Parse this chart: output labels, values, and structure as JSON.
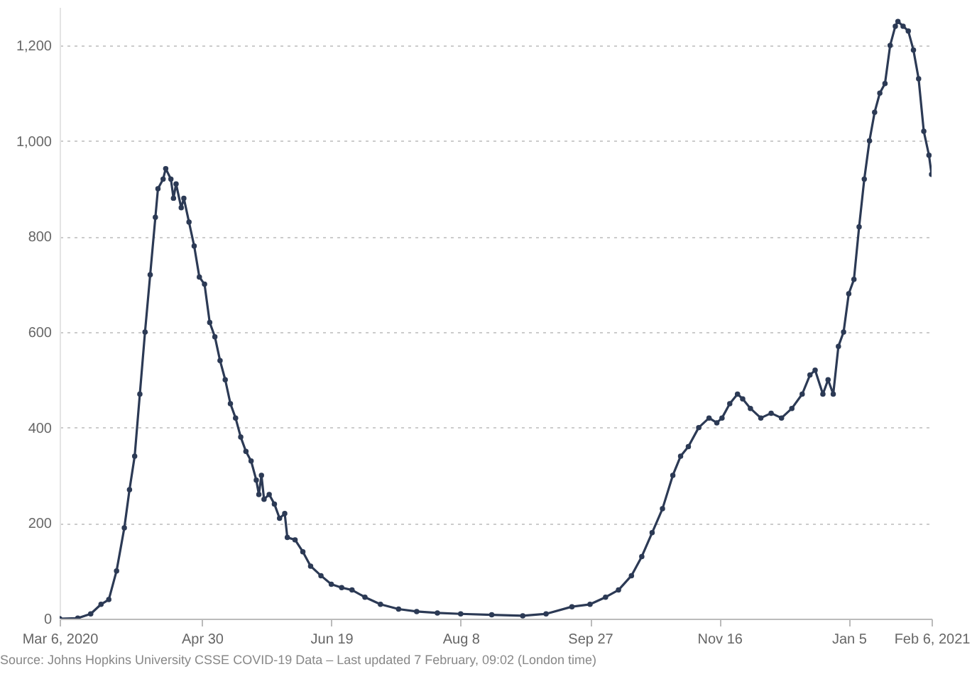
{
  "chart_data": {
    "type": "line",
    "x": [
      "2020-03-06",
      "2020-03-13",
      "2020-03-18",
      "2020-03-22",
      "2020-03-25",
      "2020-03-28",
      "2020-03-31",
      "2020-04-02",
      "2020-04-04",
      "2020-04-06",
      "2020-04-08",
      "2020-04-10",
      "2020-04-12",
      "2020-04-13",
      "2020-04-15",
      "2020-04-16",
      "2020-04-18",
      "2020-04-19",
      "2020-04-20",
      "2020-04-22",
      "2020-04-23",
      "2020-04-25",
      "2020-04-27",
      "2020-04-29",
      "2020-05-01",
      "2020-05-03",
      "2020-05-05",
      "2020-05-07",
      "2020-05-09",
      "2020-05-11",
      "2020-05-13",
      "2020-05-15",
      "2020-05-17",
      "2020-05-19",
      "2020-05-21",
      "2020-05-22",
      "2020-05-23",
      "2020-05-24",
      "2020-05-26",
      "2020-05-28",
      "2020-05-30",
      "2020-06-01",
      "2020-06-02",
      "2020-06-05",
      "2020-06-08",
      "2020-06-11",
      "2020-06-15",
      "2020-06-19",
      "2020-06-23",
      "2020-06-27",
      "2020-07-02",
      "2020-07-08",
      "2020-07-15",
      "2020-07-22",
      "2020-07-30",
      "2020-08-08",
      "2020-08-20",
      "2020-09-01",
      "2020-09-10",
      "2020-09-20",
      "2020-09-27",
      "2020-10-03",
      "2020-10-08",
      "2020-10-13",
      "2020-10-17",
      "2020-10-21",
      "2020-10-25",
      "2020-10-29",
      "2020-11-01",
      "2020-11-04",
      "2020-11-08",
      "2020-11-12",
      "2020-11-15",
      "2020-11-17",
      "2020-11-20",
      "2020-11-23",
      "2020-11-25",
      "2020-11-28",
      "2020-12-02",
      "2020-12-06",
      "2020-12-10",
      "2020-12-14",
      "2020-12-18",
      "2020-12-21",
      "2020-12-23",
      "2020-12-26",
      "2020-12-28",
      "2020-12-30",
      "2021-01-01",
      "2021-01-03",
      "2021-01-05",
      "2021-01-07",
      "2021-01-09",
      "2021-01-11",
      "2021-01-13",
      "2021-01-15",
      "2021-01-17",
      "2021-01-19",
      "2021-01-21",
      "2021-01-23",
      "2021-01-24",
      "2021-01-26",
      "2021-01-28",
      "2021-01-30",
      "2021-02-01",
      "2021-02-03",
      "2021-02-05",
      "2021-02-06"
    ],
    "series": [
      {
        "color": "#2c3a55",
        "values": [
          0,
          1,
          10,
          30,
          40,
          100,
          190,
          270,
          340,
          470,
          600,
          720,
          840,
          900,
          920,
          942,
          920,
          880,
          910,
          860,
          880,
          830,
          780,
          715,
          700,
          620,
          590,
          540,
          500,
          450,
          420,
          380,
          350,
          330,
          290,
          260,
          300,
          250,
          260,
          240,
          210,
          220,
          170,
          165,
          140,
          110,
          90,
          72,
          65,
          60,
          45,
          30,
          20,
          15,
          12,
          10,
          8,
          6,
          10,
          25,
          30,
          45,
          60,
          90,
          130,
          180,
          230,
          300,
          340,
          360,
          400,
          420,
          410,
          420,
          450,
          470,
          460,
          440,
          420,
          430,
          420,
          440,
          470,
          510,
          520,
          470,
          500,
          470,
          570,
          600,
          680,
          710,
          820,
          920,
          1000,
          1060,
          1100,
          1120,
          1200,
          1240,
          1250,
          1240,
          1230,
          1190,
          1130,
          1020,
          970,
          930
        ]
      }
    ],
    "xlim": [
      "2020-03-06",
      "2021-02-06"
    ],
    "xticks": [
      {
        "value": "2020-03-06",
        "label": "Mar 6, 2020"
      },
      {
        "value": "2020-04-30",
        "label": "Apr 30"
      },
      {
        "value": "2020-06-19",
        "label": "Jun 19"
      },
      {
        "value": "2020-08-08",
        "label": "Aug 8"
      },
      {
        "value": "2020-09-27",
        "label": "Sep 27"
      },
      {
        "value": "2020-11-16",
        "label": "Nov 16"
      },
      {
        "value": "2021-01-05",
        "label": "Jan 5"
      },
      {
        "value": "2021-02-06",
        "label": "Feb 6, 2021"
      }
    ],
    "ylim": [
      0,
      1280
    ],
    "yticks": [
      0,
      200,
      400,
      600,
      800,
      {
        "value": 1000,
        "label": "1,000"
      },
      {
        "value": 1200,
        "label": "1,200"
      }
    ],
    "grid": "y",
    "marker": "circle",
    "annotations": [
      "Source: Johns Hopkins University CSSE COVID-19 Data – Last updated 7 February, 09:02 (London time)"
    ]
  }
}
